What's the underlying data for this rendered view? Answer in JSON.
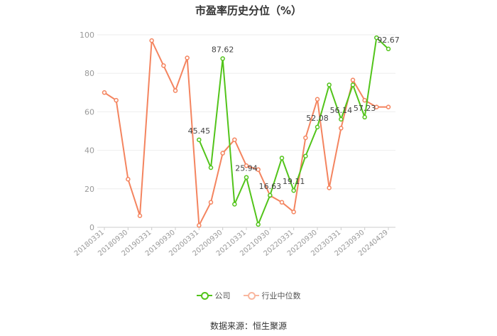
{
  "chart_data": {
    "type": "line",
    "title": "市盈率历史分位（%）",
    "xlabel": "",
    "ylabel": "",
    "ylim": [
      0,
      100
    ],
    "yticks": [
      0,
      20,
      40,
      60,
      80,
      100
    ],
    "x": [
      "20180331",
      "20180630",
      "20180930",
      "20181231",
      "20190331",
      "20190630",
      "20190930",
      "20191231",
      "20200331",
      "20200630",
      "20200930",
      "20201231",
      "20210331",
      "20210630",
      "20210930",
      "20211231",
      "20220331",
      "20220630",
      "20220930",
      "20221231",
      "20230331",
      "20230630",
      "20230930",
      "20231231",
      "20240429"
    ],
    "xtick_labels": [
      "20180331",
      "20180930",
      "20190331",
      "20190930",
      "20200331",
      "20200930",
      "20210331",
      "20210930",
      "20220331",
      "20220930",
      "20230331",
      "20230930",
      "20240429"
    ],
    "xtick_indices": [
      0,
      2,
      4,
      6,
      8,
      10,
      12,
      14,
      16,
      18,
      20,
      22,
      24
    ],
    "grid": true,
    "legend_position": "bottom",
    "series": [
      {
        "name": "公司",
        "color": "#52c41a",
        "values": [
          null,
          null,
          null,
          null,
          null,
          null,
          null,
          null,
          45.45,
          31,
          87.62,
          12,
          25.94,
          1.5,
          16.63,
          36,
          19.11,
          37,
          52.08,
          74,
          56.14,
          74,
          57.23,
          98.5,
          92.67
        ],
        "labels": {
          "8": "45.45",
          "10": "87.62",
          "12": "25.94",
          "14": "16.63",
          "16": "19.11",
          "18": "52.08",
          "20": "56.14",
          "22": "57.23",
          "24": "92.67"
        }
      },
      {
        "name": "行业中位数",
        "color": "#f4845f",
        "values": [
          70,
          66,
          25,
          6,
          97,
          84,
          71,
          88,
          1,
          13,
          38.5,
          45.5,
          32,
          30,
          16.5,
          13,
          8,
          46.5,
          66.5,
          20.5,
          51.5,
          76.5,
          66,
          62.5,
          62.5
        ]
      }
    ]
  },
  "legend": {
    "company": "公司",
    "industry": "行业中位数"
  },
  "source": "数据来源：恒生聚源"
}
